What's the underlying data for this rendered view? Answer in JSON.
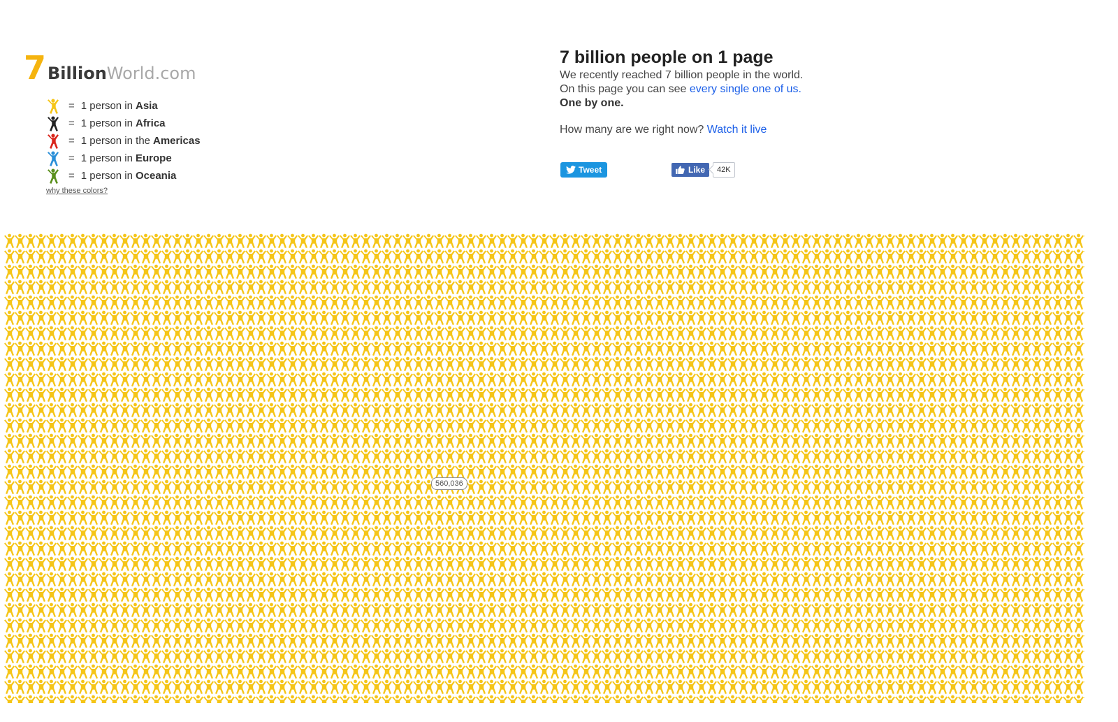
{
  "logo": {
    "seven": "7",
    "billion": "Billion",
    "world": "World.com"
  },
  "legend": {
    "items": [
      {
        "eq": "=",
        "prefix": "1 person in",
        "region": "Asia",
        "color": "#f5c518",
        "icon": "person-icon"
      },
      {
        "eq": "=",
        "prefix": "1 person in",
        "region": "Africa",
        "color": "#222222",
        "icon": "person-icon"
      },
      {
        "eq": "=",
        "prefix": "1 person in the",
        "region": "Americas",
        "color": "#d9261c",
        "icon": "person-icon"
      },
      {
        "eq": "=",
        "prefix": "1 person in",
        "region": "Europe",
        "color": "#2a8fd8",
        "icon": "person-icon"
      },
      {
        "eq": "=",
        "prefix": "1 person in",
        "region": "Oceania",
        "color": "#5a8f1c",
        "icon": "person-icon"
      }
    ],
    "why_link": "why these colors?"
  },
  "intro": {
    "title": "7 billion people on 1 page",
    "line1": "We recently reached 7 billion people in the world.",
    "line2_prefix": "On this page you can see",
    "line2_link": "every single one of us.",
    "line3": "One by one.",
    "live_prefix": "How many are we right now?",
    "live_link": "Watch it live"
  },
  "social": {
    "tweet_label": "Tweet",
    "like_label": "Like",
    "like_count": "42K"
  },
  "grid": {
    "person_color": "#f5c518",
    "counter": "560,036"
  }
}
